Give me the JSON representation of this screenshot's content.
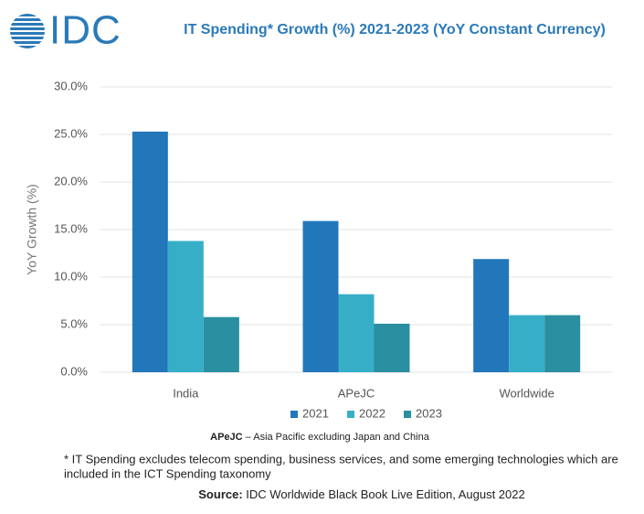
{
  "logo": "IDC",
  "chart_data": {
    "type": "bar",
    "title": "IT Spending* Growth (%) 2021-2023  (YoY Constant Currency)",
    "y_label": "YoY Growth (%)",
    "categories": [
      "India",
      "APeJC",
      "Worldwide"
    ],
    "series": [
      {
        "name": "2021",
        "color": "#2277bb",
        "values": [
          25.3,
          15.9,
          11.9
        ]
      },
      {
        "name": "2022",
        "color": "#36aec8",
        "values": [
          13.8,
          8.2,
          6.0
        ]
      },
      {
        "name": "2023",
        "color": "#2a8fa0",
        "values": [
          5.8,
          5.1,
          6.0
        ]
      }
    ],
    "ylim": [
      0,
      30
    ],
    "yticks": [
      {
        "value": 0,
        "label": "0.0%"
      },
      {
        "value": 5,
        "label": "5.0%"
      },
      {
        "value": 10,
        "label": "10.0%"
      },
      {
        "value": 15,
        "label": "15.0%"
      },
      {
        "value": 20,
        "label": "20.0%"
      },
      {
        "value": 25,
        "label": "25.0%"
      },
      {
        "value": 30,
        "label": "30.0%"
      }
    ],
    "grid": true,
    "legend": "bottom"
  },
  "notes": {
    "abbr": "APeJC",
    "abbr_text": " – Asia Pacific excluding Japan and China",
    "footnote_line1": "* IT Spending excludes telecom spending, business services, and some emerging technologies which are",
    "footnote_line2": "included in the ICT Spending taxonomy",
    "source_label": "Source:",
    "source_text": " IDC Worldwide Black Book Live Edition, August 2022"
  }
}
